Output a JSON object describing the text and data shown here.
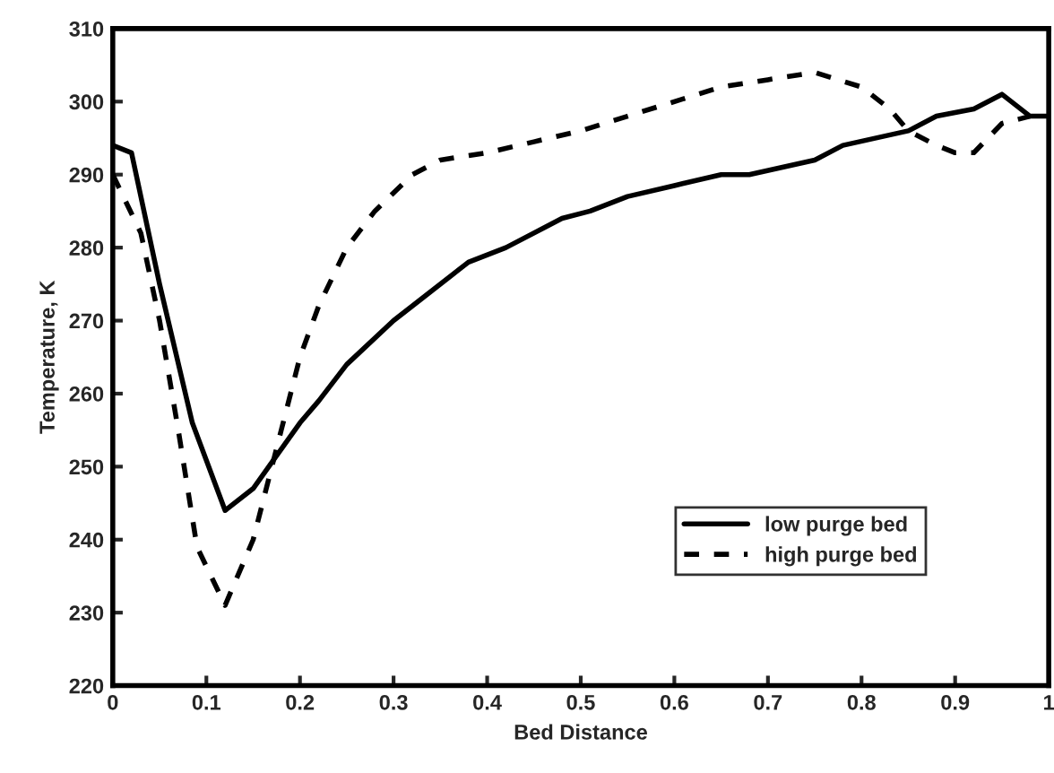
{
  "chart_data": {
    "type": "line",
    "xlabel": "Bed Distance",
    "ylabel": "Temperature, K",
    "xlim": [
      0,
      1
    ],
    "ylim": [
      220,
      310
    ],
    "xticks": [
      0,
      0.1,
      0.2,
      0.3,
      0.4,
      0.5,
      0.6,
      0.7,
      0.8,
      0.9,
      1
    ],
    "yticks": [
      220,
      230,
      240,
      250,
      260,
      270,
      280,
      290,
      300,
      310
    ],
    "grid": false,
    "legend": "bottom right",
    "series": [
      {
        "name": "low purge bed",
        "color": "#000000",
        "line_style": "solid",
        "x": [
          0,
          0.02,
          0.05,
          0.085,
          0.12,
          0.15,
          0.2,
          0.22,
          0.25,
          0.3,
          0.32,
          0.38,
          0.42,
          0.48,
          0.51,
          0.55,
          0.6,
          0.65,
          0.68,
          0.75,
          0.78,
          0.85,
          0.88,
          0.92,
          0.95,
          0.98,
          1.0
        ],
        "values": [
          294,
          293,
          275,
          256,
          244,
          247,
          256,
          259,
          264,
          270,
          272,
          278,
          280,
          284,
          285,
          287,
          288.5,
          290,
          290,
          292,
          294,
          296,
          298,
          299,
          301,
          298,
          298
        ]
      },
      {
        "name": "high purge bed",
        "color": "#000000",
        "line_style": "dashed",
        "x": [
          0,
          0.03,
          0.05,
          0.07,
          0.09,
          0.12,
          0.15,
          0.18,
          0.2,
          0.22,
          0.25,
          0.28,
          0.32,
          0.35,
          0.4,
          0.45,
          0.5,
          0.55,
          0.6,
          0.65,
          0.7,
          0.75,
          0.8,
          0.83,
          0.85,
          0.88,
          0.9,
          0.92,
          0.95,
          0.98
        ],
        "values": [
          290,
          282,
          270,
          255,
          239,
          231,
          240,
          255,
          265,
          272,
          280,
          285,
          290,
          292,
          293,
          294.5,
          296,
          298,
          300,
          302,
          303,
          304,
          302,
          299,
          296,
          294,
          293,
          293,
          297,
          298
        ]
      }
    ]
  }
}
